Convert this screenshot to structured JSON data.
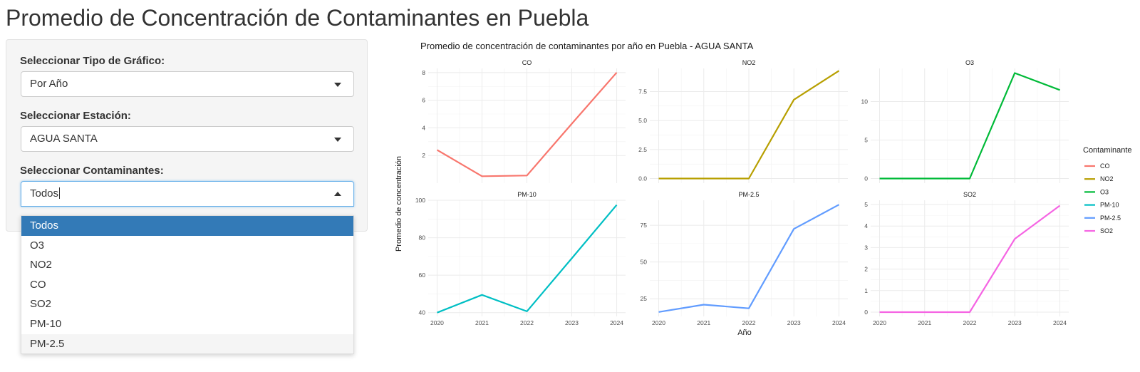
{
  "page": {
    "title": "Promedio de Concentración de Contaminantes en Puebla"
  },
  "sidebar": {
    "chart_type": {
      "label": "Seleccionar Tipo de Gráfico:",
      "value": "Por Año"
    },
    "station": {
      "label": "Seleccionar Estación:",
      "value": "AGUA SANTA"
    },
    "pollutants": {
      "label": "Seleccionar Contaminantes:",
      "value": "Todos",
      "open": true,
      "options": [
        "Todos",
        "O3",
        "NO2",
        "CO",
        "SO2",
        "PM-10",
        "PM-2.5"
      ],
      "selected_option": "Todos",
      "hovered_option": "PM-2.5"
    }
  },
  "chart_data": {
    "type": "line",
    "title": "Promedio de concentración de contaminantes por año en Puebla - AGUA SANTA",
    "xlabel": "Año",
    "ylabel": "Promedio de concentración",
    "x": [
      2020,
      2021,
      2022,
      2023,
      2024
    ],
    "grid": true,
    "legend": {
      "title": "Contaminante",
      "placement": "right"
    },
    "panels": [
      {
        "name": "CO",
        "color": "#F8766D",
        "values": [
          2.4,
          0.5,
          0.55,
          4.3,
          8.0
        ],
        "ylim": [
          0,
          8.3
        ],
        "yticks": [
          2,
          4,
          6,
          8
        ],
        "show_x_ticks": false
      },
      {
        "name": "NO2",
        "color": "#B79F00",
        "values": [
          0.0,
          0.0,
          0.0,
          6.8,
          9.3
        ],
        "ylim": [
          -0.4,
          9.5
        ],
        "yticks": [
          0.0,
          2.5,
          5.0,
          7.5
        ],
        "show_x_ticks": false
      },
      {
        "name": "O3",
        "color": "#00BA38",
        "values": [
          0.0,
          0.0,
          0.0,
          13.7,
          11.5
        ],
        "ylim": [
          -0.6,
          14.3
        ],
        "yticks": [
          0,
          5,
          10
        ],
        "show_x_ticks": false
      },
      {
        "name": "PM-10",
        "color": "#00BFC4",
        "values": [
          40,
          49.5,
          40.7,
          69,
          97.5
        ],
        "ylim": [
          38,
          100
        ],
        "yticks": [
          40,
          60,
          80,
          100
        ],
        "show_x_ticks": true
      },
      {
        "name": "PM-2.5",
        "color": "#619CFF",
        "values": [
          16.0,
          21.0,
          18.5,
          72.5,
          89.0
        ],
        "ylim": [
          13,
          92
        ],
        "yticks": [
          25,
          50,
          75
        ],
        "show_x_ticks": true
      },
      {
        "name": "SO2",
        "color": "#F564E3",
        "values": [
          0.0,
          0.0,
          0.0,
          3.4,
          4.95
        ],
        "ylim": [
          -0.2,
          5.2
        ],
        "yticks": [
          0,
          1,
          2,
          3,
          4,
          5
        ],
        "show_x_ticks": true
      }
    ],
    "legend_order": [
      "CO",
      "NO2",
      "O3",
      "PM-10",
      "PM-2.5",
      "SO2"
    ]
  }
}
